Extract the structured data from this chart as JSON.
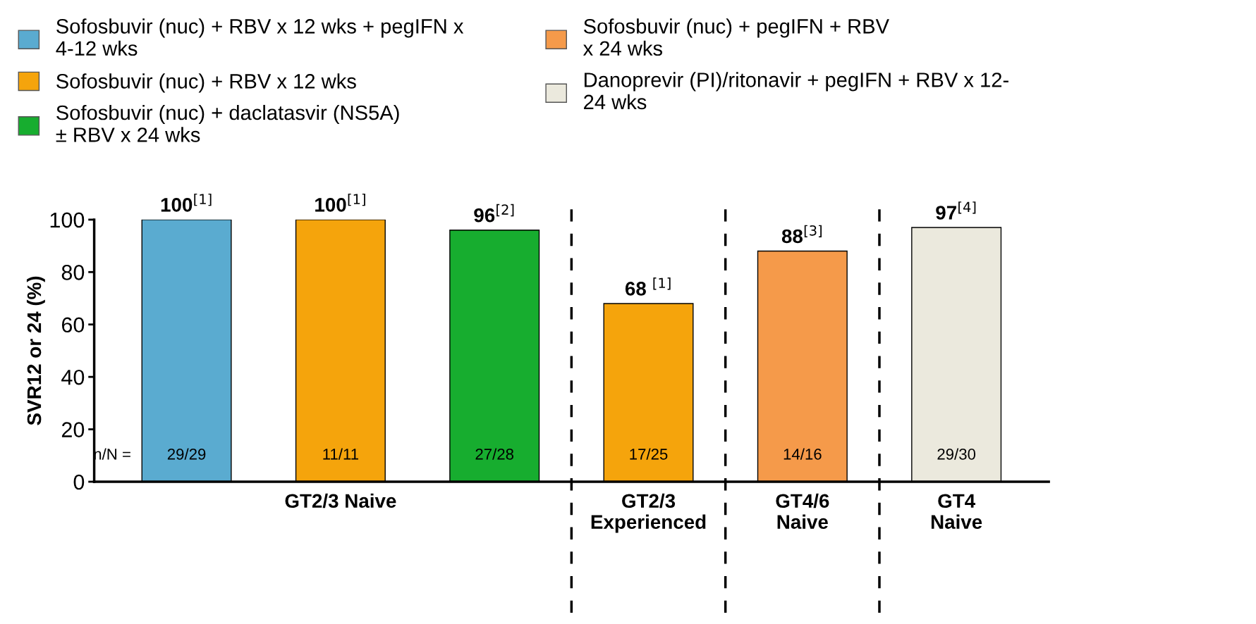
{
  "chart_data": {
    "type": "bar",
    "ylabel": "SVR12 or 24 (%)",
    "categories": [
      null,
      "GT2/3 Naive",
      null,
      "GT2/3\nExperienced",
      "GT4/6\nNaive",
      "GT4\nNaive"
    ],
    "series": [
      {
        "name": "Sofosbuvir (nuc) + RBV x 12 wks + pegIFN x\n4-12 wks",
        "color": "#5aabd0",
        "values": [
          100,
          null,
          null,
          null,
          null,
          null
        ],
        "value_labels": [
          "100$^{[1]}$",
          null,
          null,
          null,
          null,
          null
        ]
      },
      {
        "name": "Sofosbuvir (nuc) + RBV x 12 wks",
        "color": "#f5a40c",
        "values": [
          null,
          100,
          null,
          68,
          null,
          null
        ],
        "value_labels": [
          null,
          "100$^{[1]}$",
          null,
          "68 $^{[1]}$",
          null,
          null
        ]
      },
      {
        "name": "Sofosbuvir (nuc) + daclatasvir (NS5A)\n± RBV x 24 wks",
        "color": "#17ad2f",
        "values": [
          null,
          null,
          96,
          null,
          null,
          null
        ],
        "value_labels": [
          null,
          null,
          "96$^{[2]}$",
          null,
          null,
          null
        ]
      },
      {
        "name": "Sofosbuvir (nuc) + pegIFN + RBV\nx 24 wks",
        "color": "#f59a4a",
        "values": [
          null,
          null,
          null,
          null,
          88,
          null
        ],
        "value_labels": [
          null,
          null,
          null,
          null,
          "88$^{[3]}$",
          null
        ]
      },
      {
        "name": "Danoprevir (PI)/ritonavir + pegIFN + RBV x 12-\n24 wks",
        "color": "#ebe9dd",
        "values": [
          null,
          null,
          null,
          null,
          null,
          97
        ],
        "value_labels": [
          null,
          null,
          null,
          null,
          null,
          "97$^{[4]}$"
        ]
      }
    ],
    "ylim": [
      0,
      100
    ],
    "yticks": [
      0,
      20,
      40,
      60,
      80,
      100
    ],
    "annotations": [
      "n/N =",
      "29/29",
      "11/11",
      "27/28",
      "17/25",
      "14/16",
      "29/30"
    ],
    "legend": "top",
    "grid": false
  }
}
